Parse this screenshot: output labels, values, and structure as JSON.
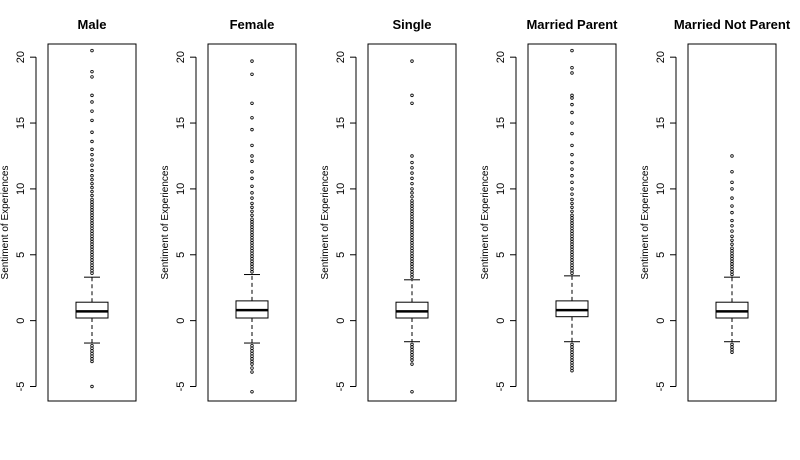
{
  "chart_data": [
    {
      "type": "box",
      "title": "Male",
      "ylabel": "Sentiment of Experiences",
      "ylim": [
        -6.1,
        21.0
      ],
      "yticks": [
        -5,
        0,
        5,
        10,
        15,
        20
      ],
      "box": {
        "whisker_low": -1.7,
        "q1": 0.2,
        "median": 0.7,
        "q3": 1.4,
        "whisker_high": 3.3
      },
      "outliers_high": [
        3.6,
        3.8,
        4.0,
        4.2,
        4.4,
        4.6,
        4.8,
        5.0,
        5.2,
        5.4,
        5.6,
        5.8,
        6.0,
        6.2,
        6.4,
        6.6,
        6.8,
        7.0,
        7.2,
        7.4,
        7.6,
        7.8,
        8.0,
        8.2,
        8.4,
        8.6,
        8.8,
        9.0,
        9.2,
        9.5,
        9.8,
        10.1,
        10.4,
        10.7,
        11.0,
        11.4,
        11.8,
        12.2,
        12.6,
        13.0,
        13.6,
        14.3,
        15.2,
        15.9,
        16.6,
        17.1,
        18.5,
        18.9,
        20.5
      ],
      "outliers_low": [
        -1.9,
        -2.1,
        -2.3,
        -2.5,
        -2.7,
        -2.9,
        -3.1,
        -5.0
      ]
    },
    {
      "type": "box",
      "title": "Female",
      "ylabel": "Sentiment of Experiences",
      "ylim": [
        -6.1,
        21.0
      ],
      "yticks": [
        -5,
        0,
        5,
        10,
        15,
        20
      ],
      "box": {
        "whisker_low": -1.7,
        "q1": 0.2,
        "median": 0.8,
        "q3": 1.5,
        "whisker_high": 3.5
      },
      "outliers_high": [
        3.7,
        3.9,
        4.1,
        4.3,
        4.5,
        4.7,
        4.9,
        5.1,
        5.3,
        5.5,
        5.7,
        5.9,
        6.1,
        6.3,
        6.5,
        6.7,
        6.9,
        7.1,
        7.3,
        7.5,
        7.7,
        8.0,
        8.3,
        8.6,
        8.9,
        9.3,
        9.7,
        10.2,
        10.8,
        11.3,
        12.1,
        12.5,
        13.3,
        14.5,
        15.4,
        16.5,
        18.7,
        19.7
      ],
      "outliers_low": [
        -1.9,
        -2.1,
        -2.3,
        -2.5,
        -2.7,
        -2.9,
        -3.1,
        -3.3,
        -3.6,
        -3.9,
        -5.4
      ]
    },
    {
      "type": "box",
      "title": "Single",
      "ylabel": "Sentiment of Experiences",
      "ylim": [
        -6.1,
        21.0
      ],
      "yticks": [
        -5,
        0,
        5,
        10,
        15,
        20
      ],
      "box": {
        "whisker_low": -1.6,
        "q1": 0.2,
        "median": 0.7,
        "q3": 1.4,
        "whisker_high": 3.1
      },
      "outliers_high": [
        3.3,
        3.5,
        3.7,
        3.9,
        4.1,
        4.3,
        4.5,
        4.7,
        4.9,
        5.1,
        5.3,
        5.5,
        5.7,
        5.9,
        6.1,
        6.3,
        6.5,
        6.7,
        6.9,
        7.1,
        7.3,
        7.5,
        7.7,
        7.9,
        8.1,
        8.3,
        8.5,
        8.7,
        8.9,
        9.1,
        9.4,
        9.7,
        10.0,
        10.4,
        10.8,
        11.2,
        11.6,
        12.0,
        12.5,
        16.5,
        17.1,
        19.7
      ],
      "outliers_low": [
        -1.8,
        -2.0,
        -2.2,
        -2.4,
        -2.6,
        -2.8,
        -3.0,
        -3.3,
        -5.4
      ]
    },
    {
      "type": "box",
      "title": "Married Parent",
      "ylabel": "Sentiment of Experiences",
      "ylim": [
        -6.1,
        21.0
      ],
      "yticks": [
        -5,
        0,
        5,
        10,
        15,
        20
      ],
      "box": {
        "whisker_low": -1.6,
        "q1": 0.3,
        "median": 0.8,
        "q3": 1.5,
        "whisker_high": 3.4
      },
      "outliers_high": [
        3.6,
        3.8,
        4.0,
        4.2,
        4.4,
        4.6,
        4.8,
        5.0,
        5.2,
        5.4,
        5.6,
        5.8,
        6.0,
        6.2,
        6.4,
        6.6,
        6.8,
        7.0,
        7.2,
        7.4,
        7.6,
        7.8,
        8.0,
        8.3,
        8.6,
        8.9,
        9.2,
        9.6,
        10.0,
        10.5,
        11.0,
        11.5,
        12.0,
        12.6,
        13.3,
        14.2,
        15.0,
        15.8,
        16.4,
        16.9,
        17.1,
        18.8,
        19.2,
        20.5
      ],
      "outliers_low": [
        -1.8,
        -2.0,
        -2.2,
        -2.4,
        -2.6,
        -2.8,
        -3.0,
        -3.2,
        -3.4,
        -3.6,
        -3.8
      ]
    },
    {
      "type": "box",
      "title": "Married Not Parent",
      "ylabel": "Sentiment of Experiences",
      "ylim": [
        -6.1,
        21.0
      ],
      "yticks": [
        -5,
        0,
        5,
        10,
        15,
        20
      ],
      "box": {
        "whisker_low": -1.6,
        "q1": 0.2,
        "median": 0.7,
        "q3": 1.4,
        "whisker_high": 3.3
      },
      "outliers_high": [
        3.5,
        3.7,
        3.9,
        4.1,
        4.3,
        4.5,
        4.7,
        4.9,
        5.1,
        5.3,
        5.5,
        5.8,
        6.1,
        6.4,
        6.8,
        7.2,
        7.6,
        8.2,
        8.7,
        9.3,
        10.0,
        10.5,
        11.3,
        12.5
      ],
      "outliers_low": [
        -1.8,
        -2.0,
        -2.2,
        -2.4
      ]
    }
  ]
}
